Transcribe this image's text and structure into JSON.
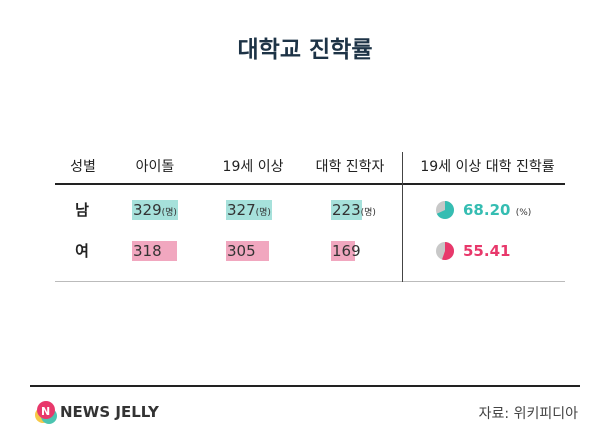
{
  "title": "대학교 진학률",
  "headers": [
    "성별",
    "아이돌",
    "19세 이상",
    "대학 진학자",
    "19세 이상 대학 진학률"
  ],
  "unit": "(명)",
  "pct_unit": "(%)",
  "colors": {
    "male_bar": "#a6e1db",
    "female_bar": "#f1a7bf",
    "male_text": "#35bdb2",
    "female_text": "#e8386b",
    "pie_bg": "#c8c8c8"
  },
  "chart_data": {
    "type": "table",
    "title": "대학교 진학률",
    "rows": [
      {
        "label": "남",
        "idol": 329,
        "adult": 327,
        "college": 223,
        "rate": 68.2,
        "idol_t": "329",
        "adult_t": "327",
        "college_t": "223",
        "rate_t": "68.20"
      },
      {
        "label": "여",
        "idol": 318,
        "adult": 305,
        "college": 169,
        "rate": 55.41,
        "idol_t": "318",
        "adult_t": "305",
        "college_t": "169",
        "rate_t": "55.41"
      }
    ]
  },
  "footer": {
    "brand": "NEWS JELLY",
    "source": "자료: 위키피디아"
  }
}
